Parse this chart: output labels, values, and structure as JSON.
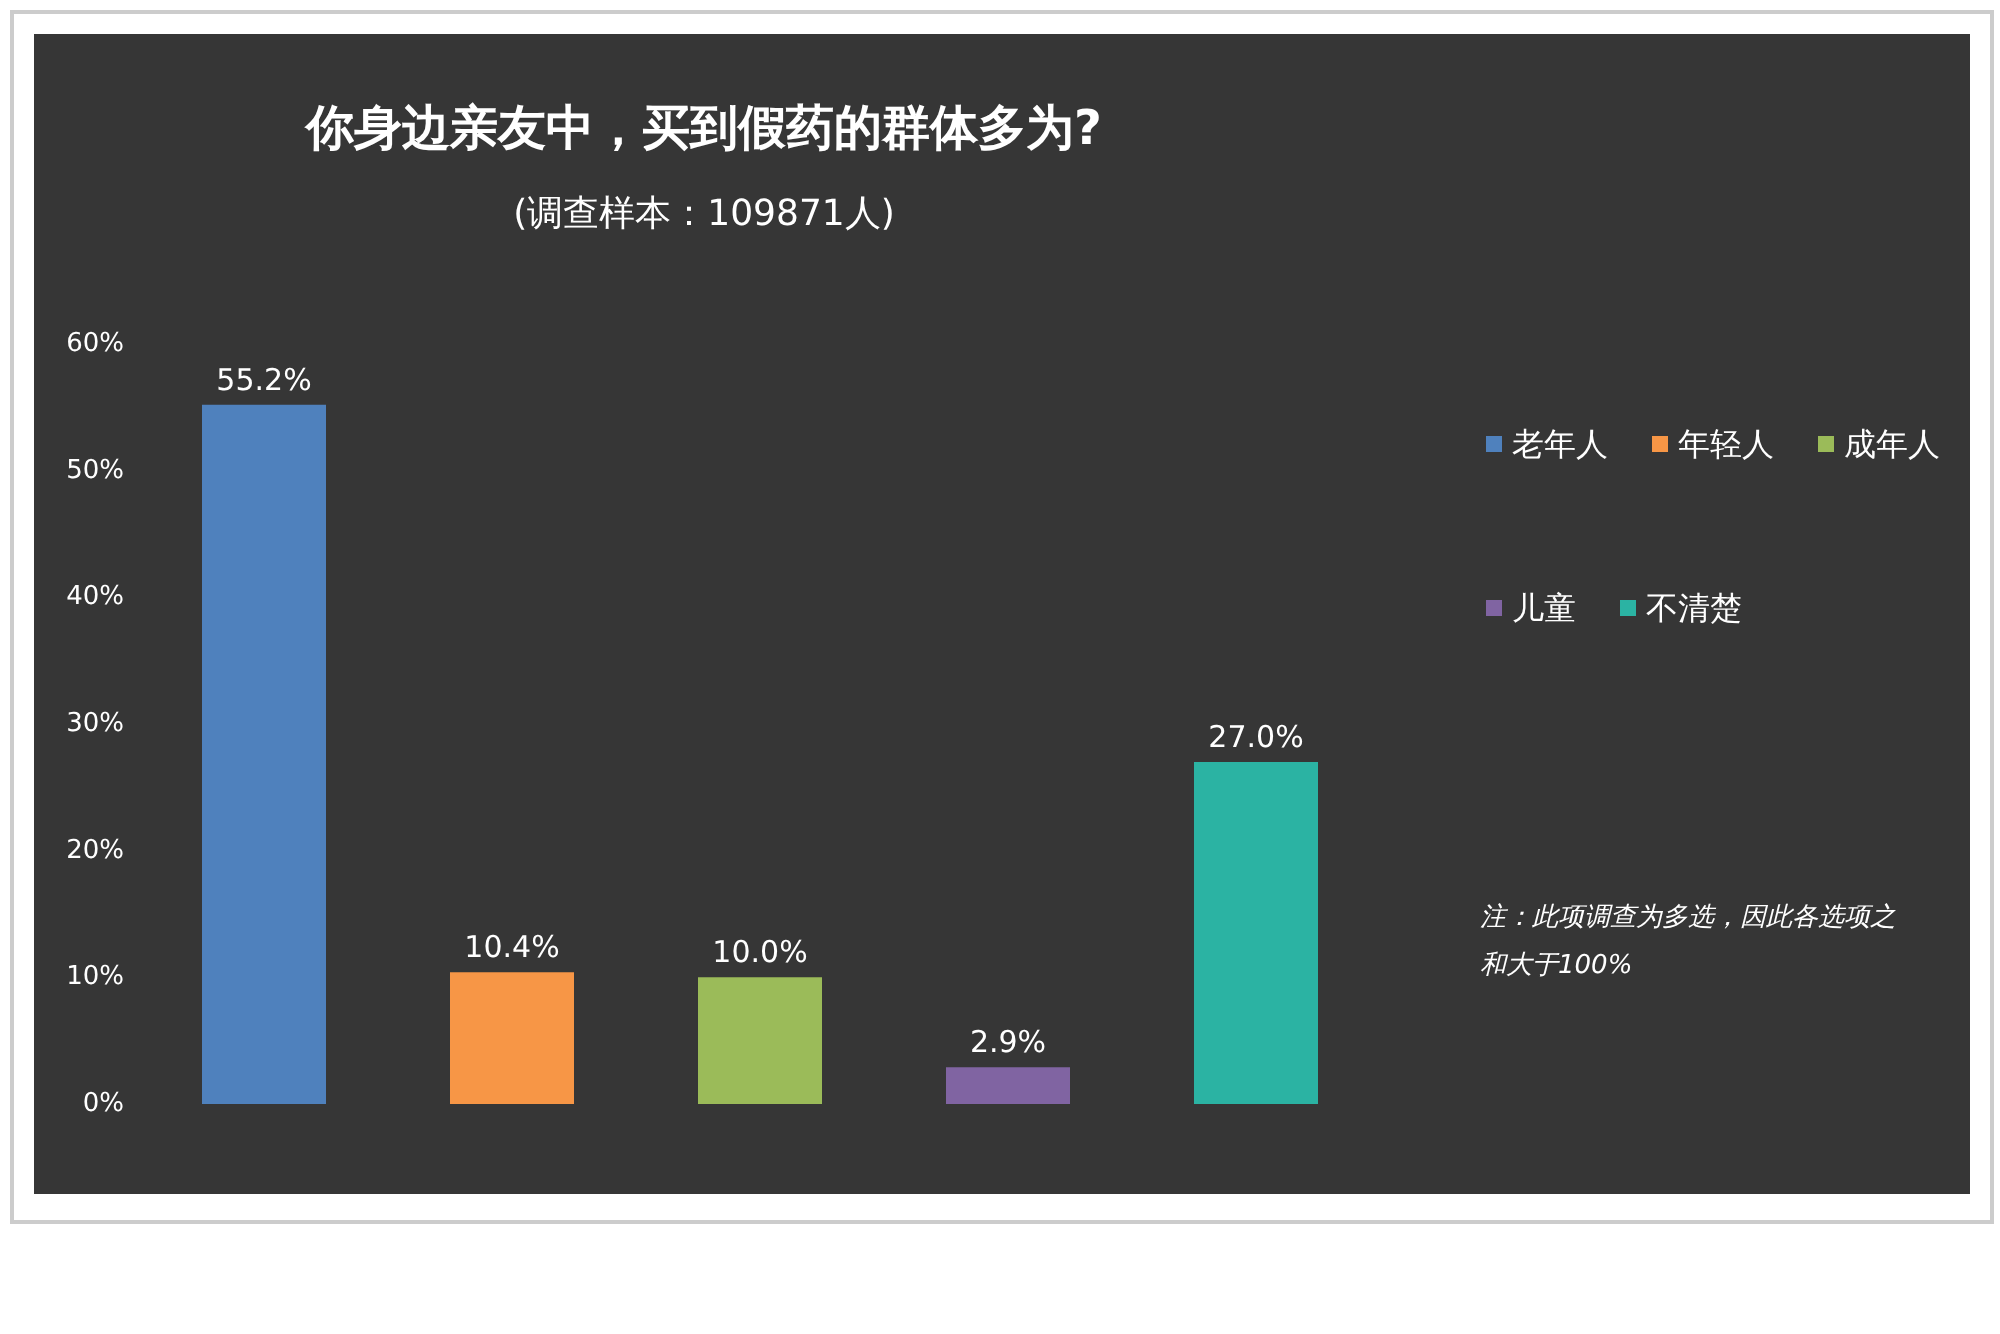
{
  "chart_data": {
    "type": "bar",
    "title": "你身边亲友中，买到假药的群体多为?",
    "subtitle": "(调查样本：109871人)",
    "categories": [
      null,
      null,
      null,
      null,
      null
    ],
    "stacked": true,
    "series": [
      {
        "name": "老年人",
        "color": "#4f81bd",
        "values": [
          55.2,
          null,
          null,
          null,
          null
        ],
        "value_labels": [
          "55.2%",
          null,
          null,
          null,
          null
        ]
      },
      {
        "name": "年轻人",
        "color": "#f79646",
        "values": [
          null,
          10.4,
          null,
          null,
          null
        ],
        "value_labels": [
          null,
          "10.4%",
          null,
          null,
          null
        ]
      },
      {
        "name": "成年人",
        "color": "#9bbb59",
        "values": [
          null,
          null,
          10.0,
          null,
          null
        ],
        "value_labels": [
          null,
          null,
          "10.0%",
          null,
          null
        ]
      },
      {
        "name": "儿童",
        "color": "#8064a2",
        "values": [
          null,
          null,
          null,
          2.9,
          null
        ],
        "value_labels": [
          null,
          null,
          null,
          "2.9%",
          null
        ]
      },
      {
        "name": "不清楚",
        "color": "#2bb3a3",
        "values": [
          null,
          null,
          null,
          null,
          27.0
        ],
        "value_labels": [
          null,
          null,
          null,
          null,
          "27.0%"
        ]
      }
    ],
    "ylim": [
      0,
      60
    ],
    "yticks": [
      {
        "value": 0,
        "label": "0%"
      },
      {
        "value": 10,
        "label": "10%"
      },
      {
        "value": 20,
        "label": "20%"
      },
      {
        "value": 30,
        "label": "30%"
      },
      {
        "value": 40,
        "label": "40%"
      },
      {
        "value": 50,
        "label": "50%"
      },
      {
        "value": 60,
        "label": "60%"
      }
    ],
    "tick_labels": "y",
    "grid": false,
    "legend": "right",
    "annotations": [
      "注：此项调查为多选，因此各选项之和大于100%"
    ]
  }
}
